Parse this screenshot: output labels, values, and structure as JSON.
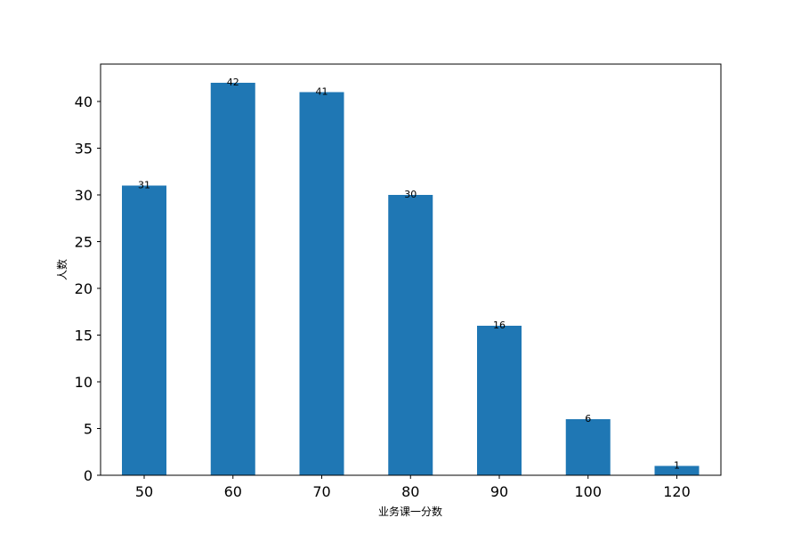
{
  "chart_data": {
    "type": "bar",
    "categories": [
      "50",
      "60",
      "70",
      "80",
      "90",
      "100",
      "120"
    ],
    "values": [
      31,
      42,
      41,
      30,
      16,
      6,
      1
    ],
    "title": "",
    "xlabel": "业务课一分数",
    "ylabel": "人数",
    "ylim": [
      0,
      44
    ],
    "yticks": [
      0,
      5,
      10,
      15,
      20,
      25,
      30,
      35,
      40
    ],
    "bar_color": "#1f77b4",
    "grid": false,
    "data_labels": true
  }
}
